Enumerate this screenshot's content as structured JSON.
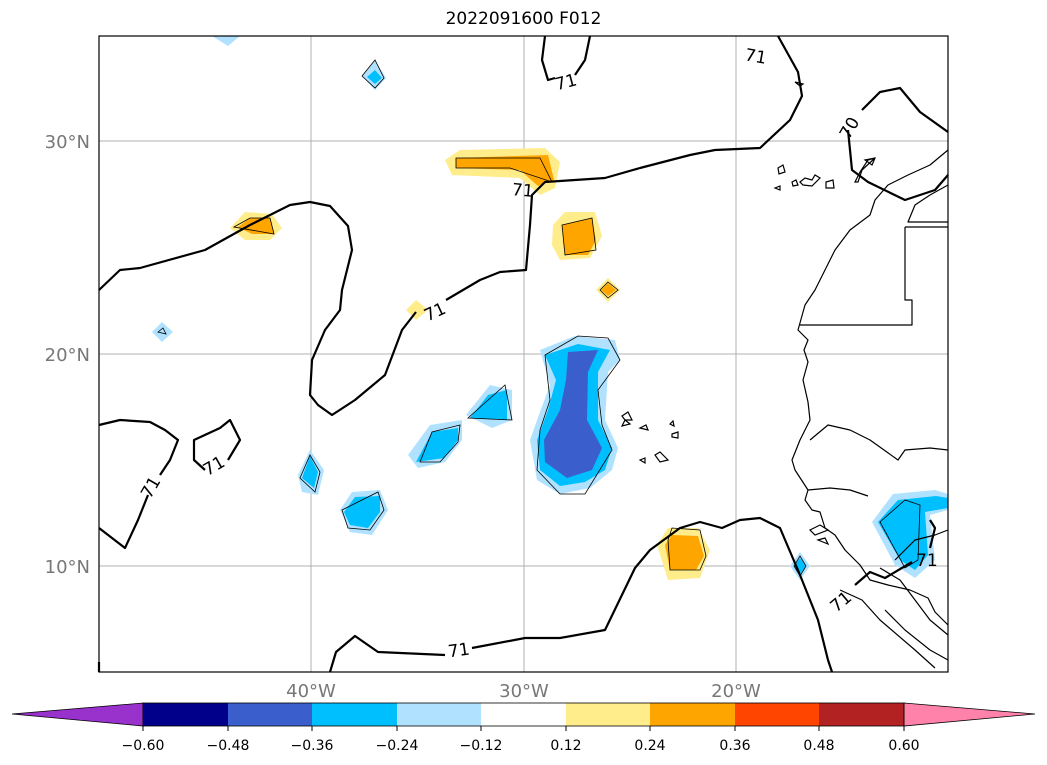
{
  "title": "2022091600 F012",
  "map": {
    "lat_ticks": [
      "30°N",
      "20°N",
      "10°N"
    ],
    "lon_ticks": [
      "40°W",
      "30°W",
      "20°W"
    ],
    "contour_label": "71",
    "contour_label_70": "70",
    "extent": {
      "lon_min": -50,
      "lon_max": -10,
      "lat_min": 5,
      "lat_max": 35
    }
  },
  "colorbar": {
    "ticks": [
      "−0.60",
      "−0.48",
      "−0.36",
      "−0.24",
      "−0.12",
      "0.12",
      "0.24",
      "0.36",
      "0.48",
      "0.60"
    ],
    "colors": [
      "#9932CC",
      "#00008B",
      "#3A5FCD",
      "#00BFFF",
      "#B0E2FF",
      "#FFFFFF",
      "#FFEC8B",
      "#FFA500",
      "#FF4500",
      "#B22222",
      "#FF82AB"
    ]
  }
}
